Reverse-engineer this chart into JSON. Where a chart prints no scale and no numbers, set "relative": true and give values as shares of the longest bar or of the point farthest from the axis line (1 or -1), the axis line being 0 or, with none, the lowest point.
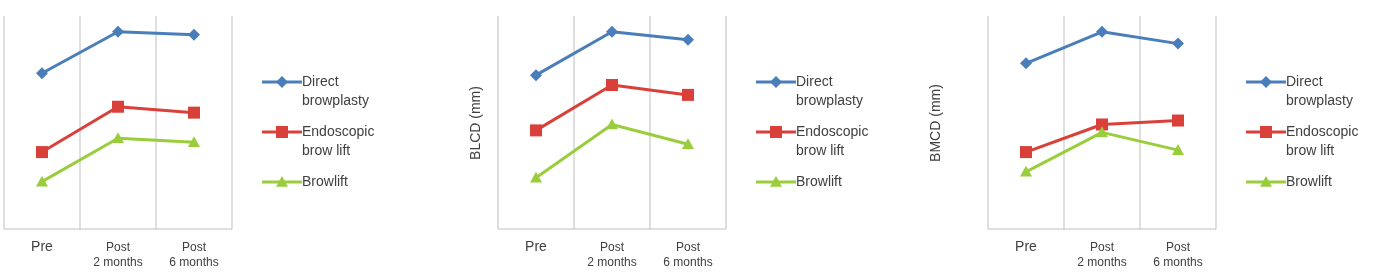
{
  "chart_data": [
    {
      "type": "line",
      "relative": true,
      "categories": [
        "Pre",
        "Post\n2 months",
        "Post\n6 months"
      ],
      "grid": "x",
      "legend": "right",
      "series": [
        {
          "name": "Direct\nbrowplasty",
          "color": "#4a7ebb",
          "marker": "diamond",
          "values": [
            0.79,
            1,
            0.985
          ]
        },
        {
          "name": "Endoscopic\nbrow lift",
          "color": "#d9403a",
          "marker": "square",
          "values": [
            0.39,
            0.62,
            0.59
          ]
        },
        {
          "name": "Browlift",
          "color": "#9acd3c",
          "marker": "triangle",
          "values": [
            0.24,
            0.46,
            0.44
          ]
        }
      ]
    },
    {
      "type": "line",
      "relative": true,
      "ylabel": "BLCD (mm)",
      "categories": [
        "Pre",
        "Post\n2 months",
        "Post\n6 months"
      ],
      "grid": "x",
      "legend": "right",
      "series": [
        {
          "name": "Direct\nbrowplasty",
          "color": "#4a7ebb",
          "marker": "diamond",
          "values": [
            0.78,
            1,
            0.96
          ]
        },
        {
          "name": "Endoscopic\nbrow lift",
          "color": "#d9403a",
          "marker": "square",
          "values": [
            0.5,
            0.73,
            0.68
          ]
        },
        {
          "name": "Browlift",
          "color": "#9acd3c",
          "marker": "triangle",
          "values": [
            0.26,
            0.53,
            0.43
          ]
        }
      ]
    },
    {
      "type": "line",
      "relative": true,
      "ylabel": "BMCD (mm)",
      "categories": [
        "Pre",
        "Post\n2 months",
        "Post\n6 months"
      ],
      "grid": "x",
      "legend": "right",
      "series": [
        {
          "name": "Direct\nbrowplasty",
          "color": "#4a7ebb",
          "marker": "diamond",
          "values": [
            0.84,
            1,
            0.94
          ]
        },
        {
          "name": "Endoscopic\nbrow lift",
          "color": "#d9403a",
          "marker": "square",
          "values": [
            0.39,
            0.53,
            0.55
          ]
        },
        {
          "name": "Browlift",
          "color": "#9acd3c",
          "marker": "triangle",
          "values": [
            0.29,
            0.49,
            0.4
          ]
        }
      ]
    }
  ]
}
